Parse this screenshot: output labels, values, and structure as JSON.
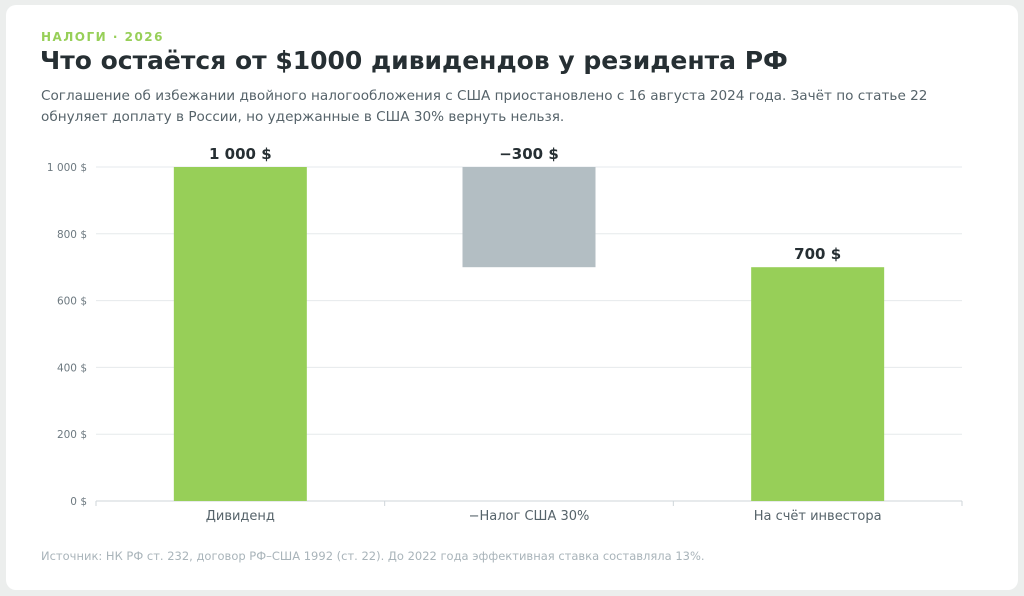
{
  "header": {
    "kicker": "НАЛОГИ · 2026",
    "title": "Что остаётся от $1000 дивидендов у резидента РФ",
    "subtitle": "Соглашение об избежании двойного налогообложения с США приостановлено с 16 августа 2024 года. Зачёт по статье 22 обнуляет доплату в России, но удержанные в США 30% вернуть нельзя."
  },
  "source": "Источник: НК РФ ст. 232, договор РФ–США 1992 (ст. 22). До 2022 года эффективная ставка составляла 13%.",
  "chart_data": {
    "type": "bar",
    "subtype": "waterfall",
    "title": "",
    "xlabel": "",
    "ylabel": "",
    "ylim": [
      0,
      1000
    ],
    "yticks": [
      0,
      200,
      400,
      600,
      800,
      1000
    ],
    "ytick_labels": [
      "0 $",
      "200 $",
      "400 $",
      "600 $",
      "800 $",
      "1 000 $"
    ],
    "grid": true,
    "legend": "none",
    "categories": [
      "Дивиденд",
      "−Налог США 30%",
      "На счёт инвестора"
    ],
    "bars": [
      {
        "category": "Дивиденд",
        "kind": "total",
        "start": 0,
        "end": 1000,
        "label": "1 000 $",
        "color": "#97cf58"
      },
      {
        "category": "−Налог США 30%",
        "kind": "decrease",
        "start": 1000,
        "end": 700,
        "label": "−300 $",
        "color": "#b3bec3"
      },
      {
        "category": "На счёт инвестора",
        "kind": "total",
        "start": 0,
        "end": 700,
        "label": "700 $",
        "color": "#97cf58"
      }
    ]
  }
}
